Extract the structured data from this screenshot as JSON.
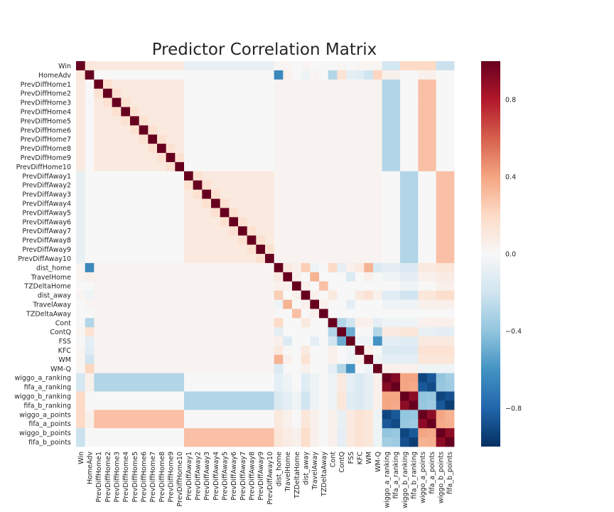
{
  "chart_data": {
    "type": "heatmap",
    "title": "Predictor Correlation Matrix",
    "labels": [
      "Win",
      "HomeAdv",
      "PrevDiffHome1",
      "PrevDiffHome2",
      "PrevDiffHome3",
      "PrevDiffHome4",
      "PrevDiffHome5",
      "PrevDiffHome6",
      "PrevDiffHome7",
      "PrevDiffHome8",
      "PrevDiffHome9",
      "PrevDiffHome10",
      "PrevDiffAway1",
      "PrevDiffAway2",
      "PrevDiffAway3",
      "PrevDiffAway4",
      "PrevDiffAway5",
      "PrevDiffAway6",
      "PrevDiffAway7",
      "PrevDiffAway8",
      "PrevDiffAway9",
      "PrevDiffAway10",
      "dist_home",
      "TravelHome",
      "TZDeltaHome",
      "dist_away",
      "TravelAway",
      "TZDeltaAway",
      "Cont",
      "ContQ",
      "FSS",
      "KFC",
      "WM",
      "WM-Q",
      "wiggo_a_ranking",
      "fifa_a_ranking",
      "wiggo_b_ranking",
      "fifa_b_ranking",
      "wiggo_a_points",
      "fifa_a_points",
      "wiggo_b_points",
      "fifa_b_points"
    ],
    "value_range": [
      -1,
      1
    ],
    "colorbar": {
      "ticks": [
        0.8,
        0.4,
        0.0,
        -0.4,
        -0.8
      ],
      "tick_labels": [
        "0.8",
        "0.4",
        "0.0",
        "−0.4",
        "−0.8"
      ]
    },
    "colormap": {
      "name": "RdBu_r",
      "stops": [
        "#053061",
        "#2166ac",
        "#4393c3",
        "#92c5de",
        "#d1e5f0",
        "#f7f7f7",
        "#fddbc7",
        "#f4a582",
        "#d6604d",
        "#b2182b",
        "#67001f"
      ]
    },
    "grid": false,
    "rules": {
      "win_row": {
        "Win": 1.0,
        "HomeAdv": 0.12,
        "PrevDiffHome": 0.1,
        "PrevDiffAway": -0.08,
        "dist_home": 0.02,
        "TravelHome": 0.02,
        "TZDeltaHome": 0.0,
        "dist_away": 0.03,
        "TravelAway": 0.0,
        "TZDeltaAway": 0.0,
        "Cont": 0.0,
        "ContQ": 0.02,
        "FSS": 0.0,
        "KFC": 0.02,
        "WM": 0.02,
        "WM-Q": 0.02,
        "a_ranking": -0.18,
        "b_ranking": 0.2,
        "a_points": 0.2,
        "b_points": -0.22
      },
      "homeadv_row": {
        "dist_home": -0.65,
        "Cont": -0.3,
        "ContQ": 0.15,
        "FSS": -0.1,
        "KFC": -0.12,
        "WM": -0.2,
        "WM-Q": 0.22,
        "TZDeltaHome": 0.0,
        "TravelHome": 0.05,
        "dist_away": -0.05,
        "TravelAway": 0.03,
        "TZDeltaAway": 0.0,
        "PrevDiff": 0.0,
        "a_ranking": 0.05,
        "b_ranking": 0.0,
        "a_points": 0.05,
        "b_points": 0.0
      },
      "prevdiff_same_block_base": 0.1,
      "prevdiff_same_block_adjacent": 0.16,
      "prevdiff_cross_block": 0.0,
      "prevdiffhome_vs_a_ranking": -0.3,
      "prevdiffhome_vs_a_points": 0.3,
      "prevdiffhome_vs_b": 0.0,
      "prevdiffaway_vs_b_ranking": -0.3,
      "prevdiffaway_vs_b_points": 0.3,
      "prevdiffaway_vs_a": 0.0,
      "prevdiff_vs_other": 0.03,
      "ranking_points": {
        "wiggo_a_ranking": {
          "wiggo_a_ranking": 1.0,
          "fifa_a_ranking": 0.92,
          "wiggo_b_ranking": 0.4,
          "fifa_b_ranking": 0.4,
          "wiggo_a_points": -0.92,
          "fifa_a_points": -0.85,
          "wiggo_b_points": -0.4,
          "fifa_b_points": -0.35
        },
        "fifa_a_ranking": {
          "wiggo_b_ranking": 0.4,
          "fifa_b_ranking": 0.38,
          "wiggo_a_points": -0.85,
          "fifa_a_points": -0.9,
          "wiggo_b_points": -0.38,
          "fifa_b_points": -0.36
        },
        "wiggo_b_ranking": {
          "fifa_b_ranking": 0.9,
          "wiggo_a_points": -0.4,
          "fifa_a_points": -0.38,
          "wiggo_b_points": -0.92,
          "fifa_b_points": -0.88
        },
        "fifa_b_ranking": {
          "wiggo_a_points": -0.38,
          "fifa_a_points": -0.36,
          "wiggo_b_points": -0.85,
          "fifa_b_points": -0.95
        },
        "wiggo_a_points": {
          "fifa_a_points": 0.9,
          "wiggo_b_points": 0.4,
          "fifa_b_points": 0.35
        },
        "fifa_a_points": {
          "wiggo_b_points": 0.38,
          "fifa_b_points": 0.36
        },
        "wiggo_b_points": {
          "fifa_b_points": 0.9
        }
      },
      "misc_pairs": [
        [
          "dist_home",
          "TravelHome",
          0.1
        ],
        [
          "dist_home",
          "TZDeltaHome",
          0.05
        ],
        [
          "dist_home",
          "dist_away",
          0.25
        ],
        [
          "dist_home",
          "TravelAway",
          -0.05
        ],
        [
          "dist_home",
          "Cont",
          0.2
        ],
        [
          "dist_home",
          "ContQ",
          -0.1
        ],
        [
          "dist_home",
          "FSS",
          0.05
        ],
        [
          "dist_home",
          "KFC",
          0.1
        ],
        [
          "dist_home",
          "WM",
          0.35
        ],
        [
          "dist_home",
          "WM-Q",
          -0.15
        ],
        [
          "TravelHome",
          "TZDeltaHome",
          0.05
        ],
        [
          "TravelHome",
          "TravelAway",
          0.35
        ],
        [
          "TravelHome",
          "FSS",
          -0.15
        ],
        [
          "TravelHome",
          "WM",
          0.05
        ],
        [
          "TZDeltaHome",
          "TZDeltaAway",
          0.3
        ],
        [
          "TZDeltaHome",
          "dist_away",
          0.05
        ],
        [
          "dist_away",
          "TravelAway",
          0.05
        ],
        [
          "dist_away",
          "Cont",
          0.1
        ],
        [
          "dist_away",
          "KFC",
          0.1
        ],
        [
          "dist_away",
          "WM",
          0.15
        ],
        [
          "dist_away",
          "WM-Q",
          0.05
        ],
        [
          "TravelAway",
          "TZDeltaAway",
          0.05
        ],
        [
          "TravelAway",
          "FSS",
          -0.1
        ],
        [
          "Cont",
          "ContQ",
          -0.3
        ],
        [
          "Cont",
          "FSS",
          -0.2
        ],
        [
          "Cont",
          "KFC",
          0.05
        ],
        [
          "Cont",
          "WM",
          0.05
        ],
        [
          "Cont",
          "WM-Q",
          -0.1
        ],
        [
          "ContQ",
          "FSS",
          -0.5
        ],
        [
          "ContQ",
          "KFC",
          0.0
        ],
        [
          "ContQ",
          "WM",
          0.0
        ],
        [
          "ContQ",
          "WM-Q",
          -0.3
        ],
        [
          "FSS",
          "KFC",
          -0.05
        ],
        [
          "FSS",
          "WM",
          -0.05
        ],
        [
          "FSS",
          "WM-Q",
          -0.6
        ],
        [
          "KFC",
          "WM",
          0.05
        ],
        [
          "KFC",
          "WM-Q",
          0.0
        ],
        [
          "WM",
          "WM-Q",
          -0.05
        ]
      ],
      "misc_vs_a_ranking": {
        "dist_home": -0.1,
        "TravelHome": -0.05,
        "TZDeltaHome": 0.0,
        "dist_away": -0.12,
        "TravelAway": -0.05,
        "TZDeltaAway": 0.0,
        "Cont": -0.05,
        "ContQ": 0.1,
        "FSS": -0.1,
        "KFC": -0.15,
        "WM": -0.1,
        "WM-Q": 0.05
      },
      "misc_vs_b_ranking": {
        "dist_home": -0.15,
        "TravelHome": -0.1,
        "TZDeltaHome": -0.05,
        "dist_away": -0.2,
        "TravelAway": -0.05,
        "TZDeltaAway": 0.0,
        "Cont": -0.05,
        "ContQ": 0.12,
        "FSS": -0.12,
        "KFC": -0.15,
        "WM": -0.1,
        "WM-Q": 0.05
      },
      "misc_vs_a_points": {
        "dist_home": 0.1,
        "TravelHome": 0.05,
        "TZDeltaHome": 0.0,
        "dist_away": 0.12,
        "TravelAway": 0.05,
        "TZDeltaAway": 0.0,
        "Cont": 0.05,
        "ContQ": -0.08,
        "FSS": 0.1,
        "KFC": 0.15,
        "WM": 0.12,
        "WM-Q": -0.05
      },
      "misc_vs_b_points": {
        "dist_home": 0.12,
        "TravelHome": 0.08,
        "TZDeltaHome": 0.05,
        "dist_away": 0.18,
        "TravelAway": 0.05,
        "TZDeltaAway": 0.0,
        "Cont": 0.05,
        "ContQ": -0.1,
        "FSS": 0.1,
        "KFC": 0.15,
        "WM": 0.12,
        "WM-Q": -0.05
      }
    }
  }
}
